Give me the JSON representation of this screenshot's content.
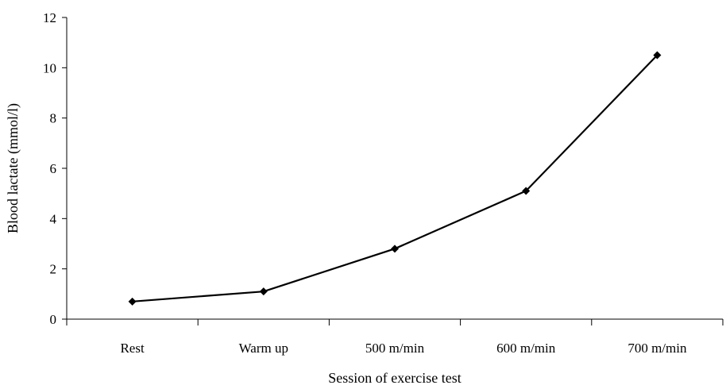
{
  "chart_data": {
    "type": "line",
    "title": "",
    "xlabel": "Session of exercise test",
    "ylabel": "Blood lactate (mmol/l)",
    "categories": [
      "Rest",
      "Warm up",
      "500 m/min",
      "600 m/min",
      "700 m/min"
    ],
    "series": [
      {
        "values": [
          0.7,
          1.1,
          2.8,
          5.1,
          10.5
        ],
        "color": "#000000",
        "marker": "diamond"
      }
    ],
    "ylim": [
      0,
      12
    ],
    "yticks": [
      0,
      2,
      4,
      6,
      8,
      10,
      12
    ],
    "grid": false,
    "legend": "none"
  }
}
